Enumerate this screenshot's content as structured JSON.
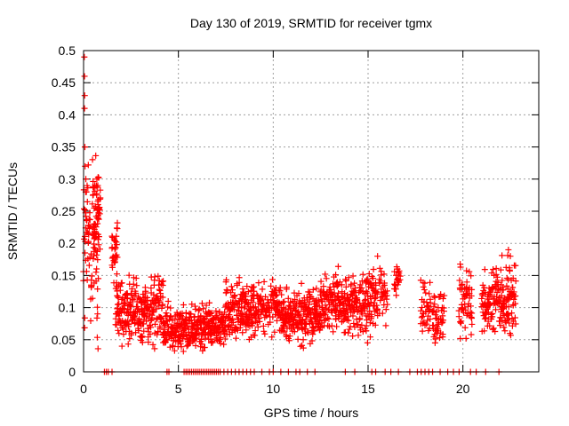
{
  "chart_data": {
    "type": "scatter",
    "title": "Day 130 of 2019, SRMTID for receiver tgmx",
    "xlabel": "GPS time / hours",
    "ylabel": "SRMTID / TECUs",
    "xlim": [
      0,
      24
    ],
    "ylim": [
      0,
      0.5
    ],
    "grid": true,
    "legend": "none",
    "marker": "+",
    "color": "#ff0000",
    "x_ticks": [
      0,
      5,
      10,
      15,
      20
    ],
    "x_tick_labels": [
      "0",
      "5",
      "10",
      "15",
      "20"
    ],
    "y_ticks": [
      0,
      0.05,
      0.1,
      0.15,
      0.2,
      0.25,
      0.3,
      0.35,
      0.4,
      0.45,
      0.5
    ],
    "y_tick_labels": [
      "0",
      "0.05",
      "0.1",
      "0.15",
      "0.2",
      "0.25",
      "0.3",
      "0.35",
      "0.4",
      "0.45",
      "0.5"
    ],
    "segments": [
      {
        "x": [
          0.0,
          0.8
        ],
        "center": 0.16,
        "spread": 0.09,
        "step": 0.03,
        "decay": 0.12
      },
      {
        "x": [
          0.5,
          0.9
        ],
        "center": 0.25,
        "spread": 0.04,
        "step": 0.025
      },
      {
        "x": [
          1.5,
          1.8
        ],
        "center": 0.19,
        "spread": 0.04,
        "step": 0.03
      },
      {
        "x": [
          1.7,
          4.2
        ],
        "center": 0.095,
        "spread": 0.035,
        "step": 0.03
      },
      {
        "x": [
          4.2,
          5.2
        ],
        "center": 0.065,
        "spread": 0.025,
        "step": 0.03
      },
      {
        "x": [
          5.2,
          7.5
        ],
        "center": 0.07,
        "spread": 0.025,
        "step": 0.03
      },
      {
        "x": [
          7.5,
          10.5
        ],
        "center": 0.1,
        "spread": 0.03,
        "step": 0.03
      },
      {
        "x": [
          10.5,
          12.5
        ],
        "center": 0.085,
        "spread": 0.03,
        "step": 0.03
      },
      {
        "x": [
          12.5,
          15.5
        ],
        "center": 0.11,
        "spread": 0.035,
        "step": 0.03
      },
      {
        "x": [
          15.6,
          16.0
        ],
        "center": 0.12,
        "spread": 0.03,
        "step": 0.04
      },
      {
        "x": [
          16.4,
          16.7
        ],
        "center": 0.14,
        "spread": 0.02,
        "step": 0.04
      },
      {
        "x": [
          17.8,
          18.3
        ],
        "center": 0.1,
        "spread": 0.03,
        "step": 0.04
      },
      {
        "x": [
          18.4,
          19.0
        ],
        "center": 0.085,
        "spread": 0.03,
        "step": 0.04
      },
      {
        "x": [
          19.8,
          20.5
        ],
        "center": 0.1,
        "spread": 0.04,
        "step": 0.035
      },
      {
        "x": [
          21.0,
          22.0
        ],
        "center": 0.11,
        "spread": 0.04,
        "step": 0.03
      },
      {
        "x": [
          22.0,
          22.8
        ],
        "center": 0.12,
        "spread": 0.045,
        "step": 0.03
      }
    ],
    "spikes": [
      {
        "x": 0.04,
        "y": 0.49
      },
      {
        "x": 0.05,
        "y": 0.46
      },
      {
        "x": 0.06,
        "y": 0.43
      },
      {
        "x": 0.05,
        "y": 0.41
      },
      {
        "x": 0.07,
        "y": 0.35
      },
      {
        "x": 0.08,
        "y": 0.32
      },
      {
        "x": 0.12,
        "y": 0.3
      },
      {
        "x": 0.15,
        "y": 0.28
      },
      {
        "x": 0.7,
        "y": 0.3
      },
      {
        "x": 0.75,
        "y": 0.29
      },
      {
        "x": 15.5,
        "y": 0.18
      },
      {
        "x": 16.55,
        "y": 0.16
      },
      {
        "x": 22.4,
        "y": 0.19
      },
      {
        "x": 22.5,
        "y": 0.18
      }
    ],
    "zero_points": [
      1.1,
      1.2,
      1.3,
      1.5,
      4.4,
      4.5,
      5.3,
      5.4,
      5.5,
      5.6,
      5.7,
      5.8,
      5.9,
      6.0,
      6.1,
      6.2,
      6.3,
      6.4,
      6.5,
      6.6,
      6.7,
      6.8,
      6.9,
      7.0,
      7.1,
      7.2,
      7.4,
      7.6,
      7.8,
      8.0,
      8.2,
      8.4,
      8.6,
      8.8,
      9.0,
      9.4,
      9.8,
      10.0,
      10.4,
      10.8,
      11.2,
      11.4,
      11.8,
      12.2,
      13.8,
      14.3,
      15.2,
      15.4,
      15.9,
      16.2,
      16.6,
      17.2,
      17.6,
      17.8,
      18.0,
      18.2,
      18.4,
      18.8,
      19.2,
      19.5,
      19.8,
      20.4,
      20.7,
      21.2,
      21.9
    ]
  }
}
